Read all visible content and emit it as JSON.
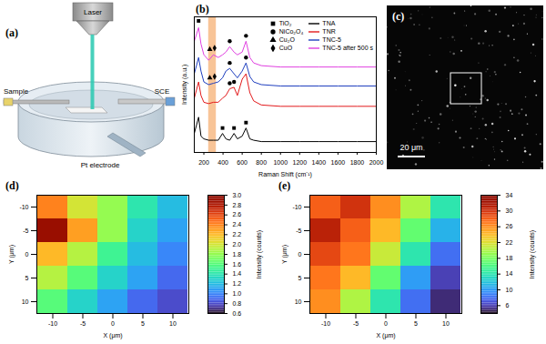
{
  "schematic": {
    "label": "(a)",
    "laser": "Laser",
    "sample": "Sample",
    "reference_electrode": "SCE",
    "counter_electrode": "Pt electrode"
  },
  "micrograph": {
    "label": "(c)",
    "scale_bar": "20 μm"
  },
  "chart_data": [
    {
      "type": "line",
      "title": "(b)",
      "x_label": "Raman Shift (cm⁻¹)",
      "y_label": "Intensity (a.u.)",
      "x": [
        100,
        145,
        170,
        200,
        250,
        300,
        350,
        395,
        430,
        470,
        515,
        550,
        600,
        640,
        680,
        720,
        800,
        1000,
        1200,
        1400,
        1600,
        1800,
        2000
      ],
      "xlim": [
        100,
        2000
      ],
      "xticks": [
        200,
        400,
        600,
        800,
        1000,
        1200,
        1400,
        1600,
        1800,
        2000
      ],
      "ylim": [
        0,
        100
      ],
      "tick_labels": "x",
      "highlight": {
        "x": [
          250,
          330
        ],
        "color": "#f4a460"
      },
      "series": [
        {
          "name": "TiO₂",
          "type": "scatter",
          "marker": "square",
          "color": "#000000",
          "x": [
            145,
            395,
            515,
            640
          ],
          "values": [
            97,
            18,
            18,
            22
          ]
        },
        {
          "name": "NiCo₂O₄",
          "type": "scatter",
          "marker": "circle",
          "color": "#000000",
          "x": [
            470,
            515,
            470,
            640,
            470,
            640
          ],
          "values": [
            51,
            52,
            66,
            70,
            82,
            86
          ]
        },
        {
          "name": "Cu₂O",
          "type": "scatter",
          "marker": "triangle",
          "color": "#000000",
          "x": [
            262,
            262
          ],
          "values": [
            76,
            55
          ]
        },
        {
          "name": "CuO",
          "type": "scatter",
          "marker": "diamond",
          "color": "#000000",
          "x": [
            312,
            312
          ],
          "values": [
            77,
            56
          ]
        },
        {
          "name": "TNA",
          "type": "line",
          "color": "#000000",
          "values": [
            14,
            26,
            12,
            10,
            9,
            9,
            9,
            14,
            10,
            9,
            14,
            10,
            12,
            18,
            10,
            9,
            8,
            8,
            8,
            8,
            8,
            8,
            8
          ]
        },
        {
          "name": "TNR",
          "type": "line",
          "color": "#e31a1c",
          "values": [
            40,
            52,
            42,
            37,
            36,
            37,
            37,
            40,
            42,
            47,
            48,
            42,
            54,
            58,
            44,
            38,
            35,
            34,
            34,
            34,
            34,
            34,
            34
          ]
        },
        {
          "name": "TNC-5",
          "type": "line",
          "color": "#1f3fbf",
          "values": [
            58,
            70,
            60,
            52,
            50,
            51,
            52,
            55,
            60,
            62,
            58,
            55,
            60,
            66,
            56,
            52,
            50,
            49,
            49,
            49,
            49,
            49,
            49
          ]
        },
        {
          "name": "TNC-5 after 500 s",
          "type": "line",
          "color": "#e040e0",
          "values": [
            82,
            92,
            80,
            72,
            68,
            72,
            70,
            72,
            74,
            78,
            74,
            72,
            74,
            82,
            70,
            66,
            64,
            63,
            63,
            63,
            63,
            63,
            63
          ]
        }
      ]
    },
    {
      "type": "heatmap",
      "title": "(d)",
      "x_label": "X (μm)",
      "y_label": "Y (μm)",
      "x": [
        -10,
        -5,
        0,
        5,
        10
      ],
      "y": [
        -10,
        -5,
        0,
        5,
        10
      ],
      "xticks": [
        -10,
        -5,
        0,
        5,
        10
      ],
      "yticks": [
        -10,
        -5,
        0,
        5,
        10
      ],
      "cells": [
        [
          2.4,
          2.0,
          1.8,
          1.4,
          1.2
        ],
        [
          2.9,
          2.3,
          1.8,
          1.3,
          1.1
        ],
        [
          2.2,
          1.9,
          1.5,
          1.2,
          1.0
        ],
        [
          1.9,
          1.6,
          1.3,
          1.1,
          0.9
        ],
        [
          1.6,
          1.3,
          1.1,
          0.9,
          0.8
        ]
      ],
      "colorbar": {
        "label": "Intensity (counts)",
        "range": [
          0.6,
          3.0
        ],
        "ticks": [
          0.6,
          0.8,
          {
            "value": 1,
            "label": "1.0"
          },
          1.2,
          1.4,
          1.6,
          1.8,
          {
            "value": 2,
            "label": "2.0"
          },
          2.2,
          2.4,
          2.6,
          2.8,
          {
            "value": 3,
            "label": "3.0"
          }
        ]
      }
    },
    {
      "type": "heatmap",
      "title": "(e)",
      "x_label": "X (μm)",
      "y_label": "Y (μm)",
      "x": [
        -10,
        -5,
        0,
        5,
        10
      ],
      "y": [
        -10,
        -5,
        0,
        5,
        10
      ],
      "xticks": [
        -10,
        -5,
        0,
        5,
        10
      ],
      "yticks": [
        -10,
        -5,
        0,
        5,
        10
      ],
      "cells": [
        [
          28,
          30,
          26,
          20,
          14
        ],
        [
          31,
          28,
          24,
          17,
          11
        ],
        [
          29,
          27,
          21,
          14,
          8
        ],
        [
          27,
          24,
          17,
          10,
          6
        ],
        [
          26,
          20,
          14,
          8,
          5
        ]
      ],
      "colorbar": {
        "label": "Intensity (counts)",
        "range": [
          4,
          34
        ],
        "ticks": [
          6,
          10,
          14,
          18,
          22,
          26,
          30,
          34
        ]
      }
    }
  ]
}
